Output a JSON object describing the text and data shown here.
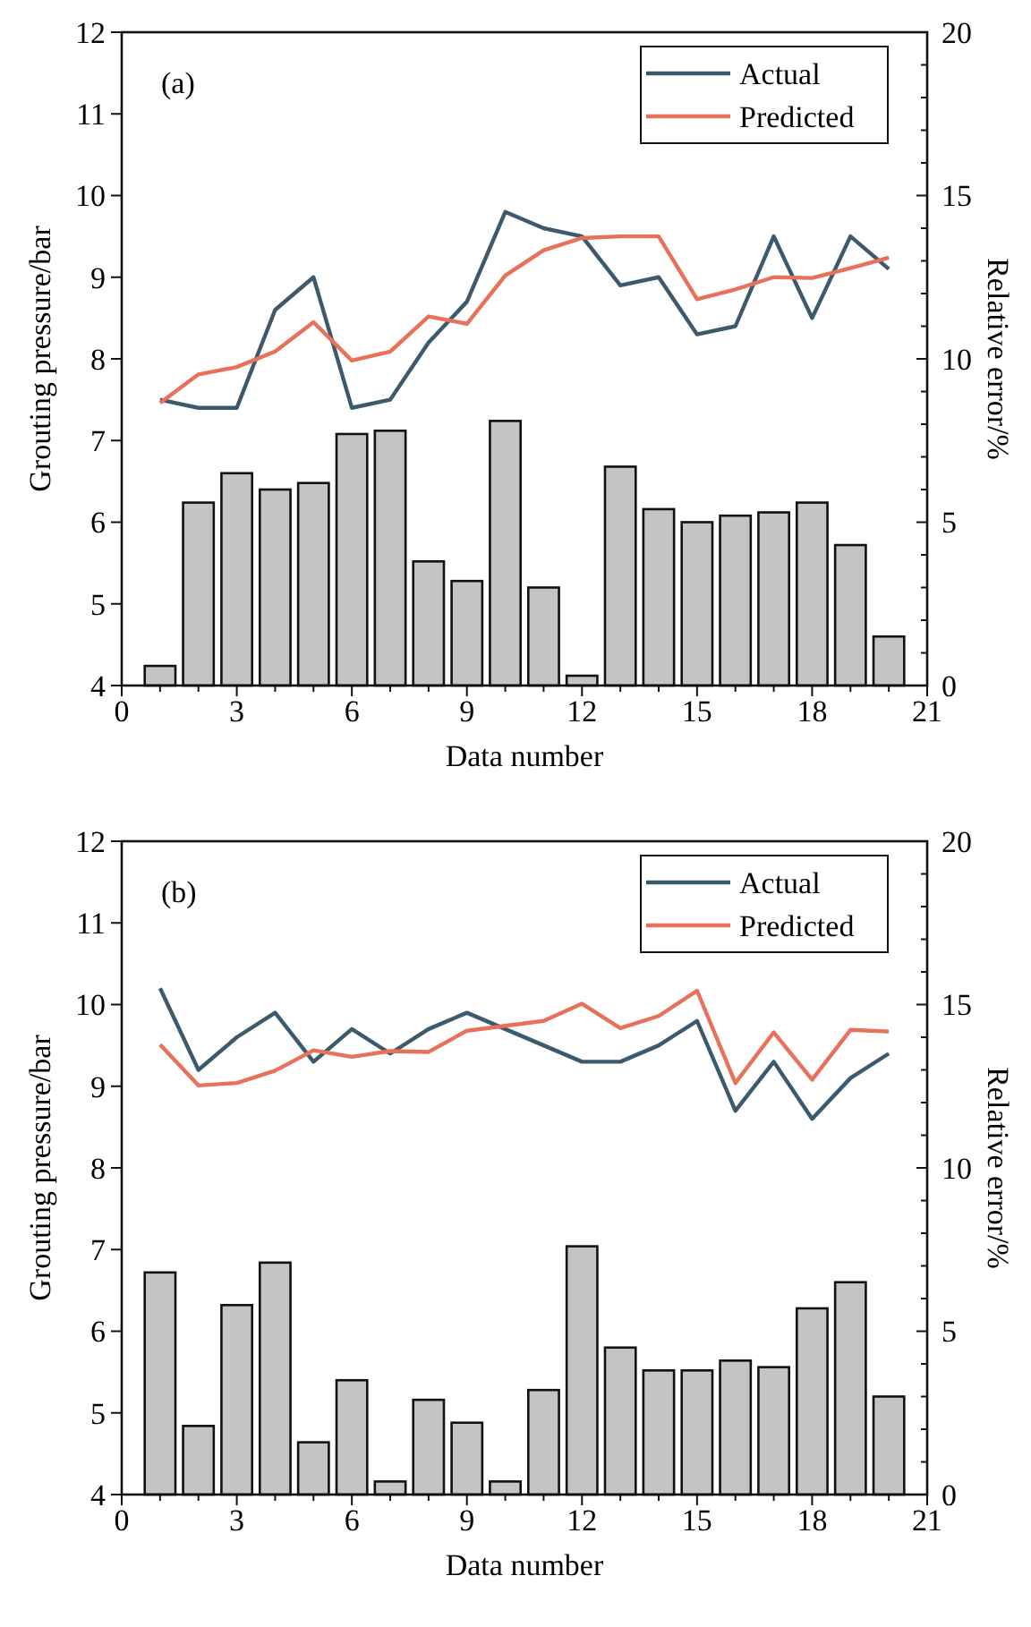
{
  "chart_data": [
    {
      "type": "line",
      "xlabel": "Data number",
      "ylabel": "Grouting pressure/bar",
      "y2label": "Relative error/%",
      "annotations": [
        "(a)"
      ],
      "legend": "top right",
      "grid": false,
      "x": [
        1,
        2,
        3,
        4,
        5,
        6,
        7,
        8,
        9,
        10,
        11,
        12,
        13,
        14,
        15,
        16,
        17,
        18,
        19,
        20
      ],
      "xlim": [
        0,
        21
      ],
      "xticks": [
        0,
        {
          "value": 1,
          "label": null
        },
        {
          "value": 2,
          "label": null
        },
        3,
        {
          "value": 4,
          "label": null
        },
        {
          "value": 5,
          "label": null
        },
        6,
        {
          "value": 7,
          "label": null
        },
        {
          "value": 8,
          "label": null
        },
        9,
        {
          "value": 10,
          "label": null
        },
        {
          "value": 11,
          "label": null
        },
        12,
        {
          "value": 13,
          "label": null
        },
        {
          "value": 14,
          "label": null
        },
        15,
        {
          "value": 16,
          "label": null
        },
        {
          "value": 17,
          "label": null
        },
        18,
        {
          "value": 19,
          "label": null
        },
        {
          "value": 20,
          "label": null
        },
        21
      ],
      "ylim": [
        4,
        12
      ],
      "yticks": [
        4,
        5,
        6,
        7,
        8,
        9,
        10,
        11,
        12
      ],
      "y2lim": [
        0,
        20
      ],
      "y2ticks": [
        0,
        {
          "value": 1,
          "label": null
        },
        {
          "value": 2,
          "label": null
        },
        {
          "value": 3,
          "label": null
        },
        {
          "value": 4,
          "label": null
        },
        5,
        {
          "value": 6,
          "label": null
        },
        {
          "value": 7,
          "label": null
        },
        {
          "value": 8,
          "label": null
        },
        {
          "value": 9,
          "label": null
        },
        10,
        {
          "value": 11,
          "label": null
        },
        {
          "value": 12,
          "label": null
        },
        {
          "value": 13,
          "label": null
        },
        {
          "value": 14,
          "label": null
        },
        15,
        {
          "value": 16,
          "label": null
        },
        {
          "value": 17,
          "label": null
        },
        {
          "value": 18,
          "label": null
        },
        {
          "value": 19,
          "label": null
        },
        20
      ],
      "series": [
        {
          "type": "bar",
          "axis": "y2",
          "color": "#c4c4c4",
          "values": [
            0.6,
            5.6,
            6.5,
            6.0,
            6.2,
            7.7,
            7.8,
            3.8,
            3.2,
            8.1,
            3.0,
            0.3,
            6.7,
            5.4,
            5.0,
            5.2,
            5.3,
            5.6,
            4.3,
            1.5
          ]
        },
        {
          "name": "Actual",
          "color": "#3d5a6c",
          "values": [
            7.5,
            7.4,
            7.4,
            8.6,
            9.0,
            7.4,
            7.5,
            8.2,
            8.7,
            9.8,
            9.6,
            9.5,
            8.9,
            9.0,
            8.3,
            8.4,
            9.5,
            8.5,
            9.5,
            9.1
          ]
        },
        {
          "name": "Predicted",
          "color": "#e8715a",
          "values": [
            7.46,
            7.81,
            7.9,
            8.09,
            8.45,
            7.98,
            8.09,
            8.52,
            8.43,
            9.02,
            9.33,
            9.48,
            9.5,
            9.5,
            8.73,
            8.85,
            9.0,
            8.99,
            9.11,
            9.24
          ]
        }
      ]
    },
    {
      "type": "line",
      "xlabel": "Data number",
      "ylabel": "Grouting pressure/bar",
      "y2label": "Relative error/%",
      "annotations": [
        "(b)"
      ],
      "legend": "top right",
      "grid": false,
      "x": [
        1,
        2,
        3,
        4,
        5,
        6,
        7,
        8,
        9,
        10,
        11,
        12,
        13,
        14,
        15,
        16,
        17,
        18,
        19,
        20
      ],
      "xlim": [
        0,
        21
      ],
      "xticks": [
        0,
        {
          "value": 1,
          "label": null
        },
        {
          "value": 2,
          "label": null
        },
        3,
        {
          "value": 4,
          "label": null
        },
        {
          "value": 5,
          "label": null
        },
        6,
        {
          "value": 7,
          "label": null
        },
        {
          "value": 8,
          "label": null
        },
        9,
        {
          "value": 10,
          "label": null
        },
        {
          "value": 11,
          "label": null
        },
        12,
        {
          "value": 13,
          "label": null
        },
        {
          "value": 14,
          "label": null
        },
        15,
        {
          "value": 16,
          "label": null
        },
        {
          "value": 17,
          "label": null
        },
        18,
        {
          "value": 19,
          "label": null
        },
        {
          "value": 20,
          "label": null
        },
        21
      ],
      "ylim": [
        4,
        12
      ],
      "yticks": [
        4,
        5,
        6,
        7,
        8,
        9,
        10,
        11,
        12
      ],
      "y2lim": [
        0,
        20
      ],
      "y2ticks": [
        0,
        {
          "value": 1,
          "label": null
        },
        {
          "value": 2,
          "label": null
        },
        {
          "value": 3,
          "label": null
        },
        {
          "value": 4,
          "label": null
        },
        5,
        {
          "value": 6,
          "label": null
        },
        {
          "value": 7,
          "label": null
        },
        {
          "value": 8,
          "label": null
        },
        {
          "value": 9,
          "label": null
        },
        10,
        {
          "value": 11,
          "label": null
        },
        {
          "value": 12,
          "label": null
        },
        {
          "value": 13,
          "label": null
        },
        {
          "value": 14,
          "label": null
        },
        15,
        {
          "value": 16,
          "label": null
        },
        {
          "value": 17,
          "label": null
        },
        {
          "value": 18,
          "label": null
        },
        {
          "value": 19,
          "label": null
        },
        20
      ],
      "series": [
        {
          "type": "bar",
          "axis": "y2",
          "color": "#c4c4c4",
          "values": [
            6.8,
            2.1,
            5.8,
            7.1,
            1.6,
            3.5,
            0.4,
            2.9,
            2.2,
            0.4,
            3.2,
            7.6,
            4.5,
            3.8,
            3.8,
            4.1,
            3.9,
            5.7,
            6.5,
            3.0
          ]
        },
        {
          "name": "Actual",
          "color": "#3d5a6c",
          "values": [
            10.2,
            9.2,
            9.6,
            9.9,
            9.3,
            9.7,
            9.4,
            9.7,
            9.9,
            9.7,
            9.5,
            9.3,
            9.3,
            9.5,
            9.8,
            8.7,
            9.3,
            8.6,
            9.1,
            9.4
          ]
        },
        {
          "name": "Predicted",
          "color": "#e8715a",
          "values": [
            9.51,
            9.01,
            9.04,
            9.19,
            9.44,
            9.36,
            9.43,
            9.42,
            9.68,
            9.74,
            9.8,
            10.01,
            9.71,
            9.86,
            10.17,
            9.04,
            9.66,
            9.08,
            9.69,
            9.67
          ]
        }
      ]
    }
  ]
}
